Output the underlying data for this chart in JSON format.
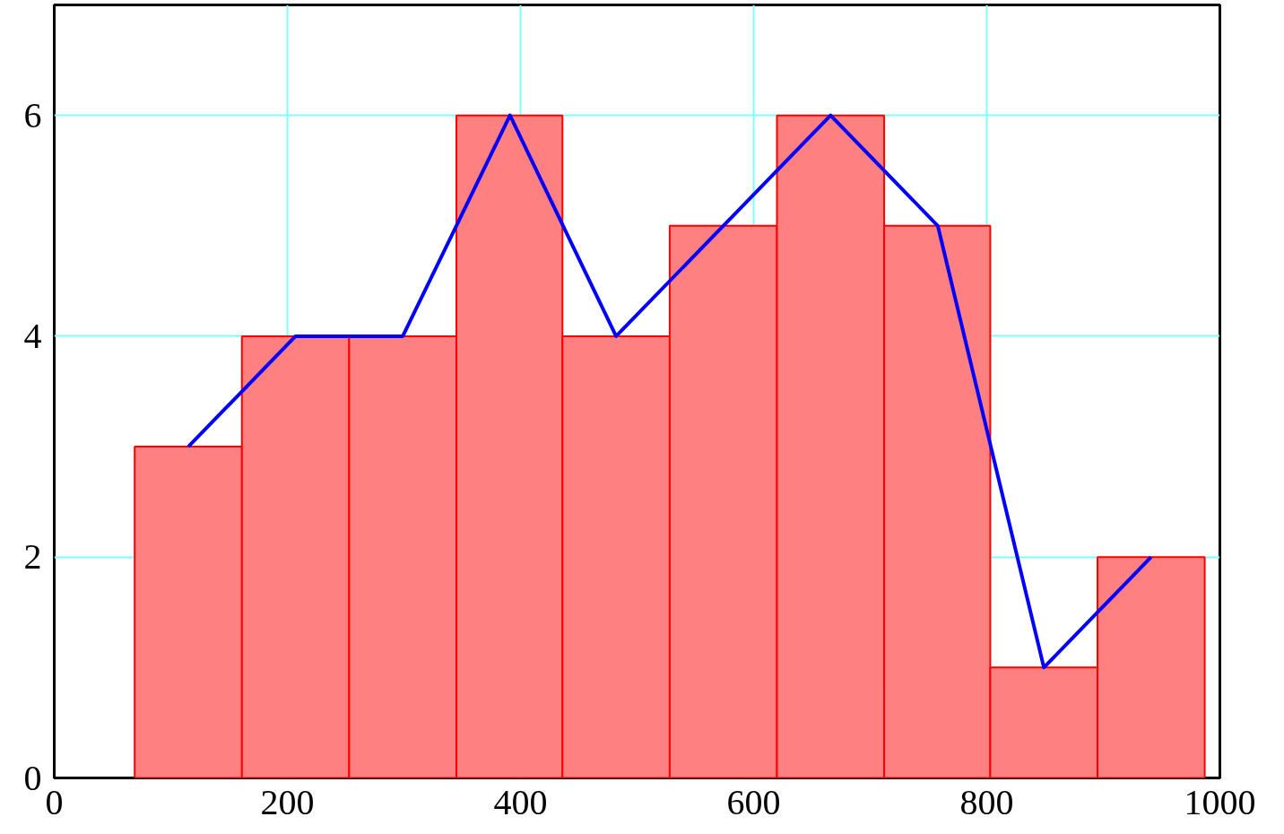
{
  "chart_data": {
    "type": "histogram",
    "series": [
      {
        "bins": [
          69,
          161,
          253,
          345,
          436,
          528,
          620,
          712,
          803,
          895,
          987
        ],
        "values": [
          3,
          4,
          4,
          6,
          4,
          5,
          6,
          5,
          1,
          2
        ],
        "color": "#ff8080"
      },
      {
        "type": "line",
        "x": [
          115,
          207,
          299,
          391,
          482,
          574,
          666,
          758,
          849,
          941
        ],
        "values": [
          3,
          4,
          4,
          6,
          4,
          5,
          6,
          5,
          1,
          2
        ],
        "color": "#0000ff"
      }
    ],
    "xlim": [
      0,
      1000
    ],
    "xticks": [
      0,
      200,
      400,
      600,
      800,
      1000
    ],
    "ylim": [
      0,
      7
    ],
    "yticks": [
      0,
      2,
      4,
      6
    ],
    "grid": true,
    "marker": "none",
    "line_style": "solid"
  }
}
